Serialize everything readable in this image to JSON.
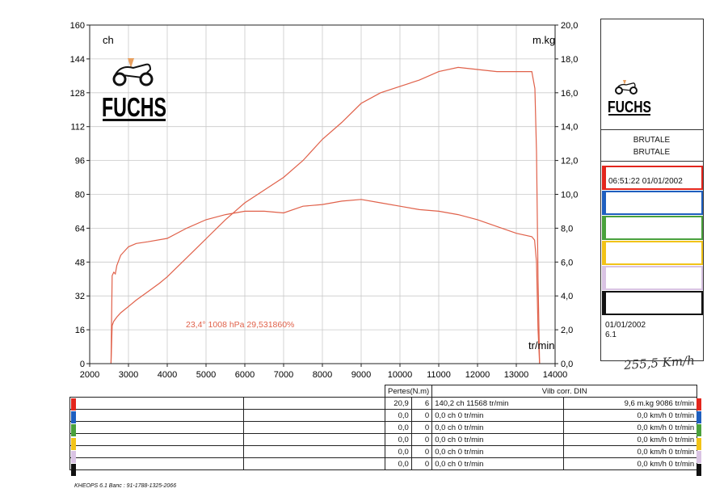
{
  "chart_data": {
    "type": "line",
    "title": "",
    "xlabel": "tr/min",
    "ylabel_left": "ch",
    "ylabel_right": "m.kg",
    "xlim": [
      2000,
      14000
    ],
    "ylim_left": [
      0,
      160
    ],
    "ylim_right": [
      0,
      20
    ],
    "x_ticks": [
      2000,
      3000,
      4000,
      5000,
      6000,
      7000,
      8000,
      9000,
      10000,
      11000,
      12000,
      13000,
      14000
    ],
    "y_left_ticks": [
      0,
      16,
      32,
      48,
      64,
      80,
      96,
      112,
      128,
      144,
      160
    ],
    "y_right_ticks": [
      "0,0",
      "2,0",
      "4,0",
      "6,0",
      "8,0",
      "10,0",
      "12,0",
      "14,0",
      "16,0",
      "18,0",
      "20,0"
    ],
    "grid": true,
    "annotation": "23,4°  1008 hPa  29,531860%",
    "series": [
      {
        "axis": "left",
        "x": [
          2550,
          2580,
          2620,
          2700,
          2800,
          3000,
          3200,
          3500,
          3800,
          4000,
          4500,
          5000,
          5500,
          6000,
          6500,
          7000,
          7500,
          8000,
          8500,
          9000,
          9500,
          10000,
          10500,
          11000,
          11500,
          12000,
          12500,
          13000,
          13400,
          13480,
          13520,
          13560,
          13600
        ],
        "y": [
          0,
          18,
          20,
          22,
          24,
          27,
          30,
          34,
          38,
          41,
          50,
          59,
          68,
          76,
          82,
          88,
          96,
          106,
          114,
          123,
          128,
          131,
          134,
          138,
          140,
          139,
          138,
          138,
          138,
          130,
          100,
          40,
          0
        ]
      },
      {
        "axis": "right",
        "x": [
          2550,
          2580,
          2620,
          2660,
          2700,
          2800,
          3000,
          3200,
          3500,
          4000,
          4500,
          5000,
          5500,
          6000,
          6500,
          7000,
          7500,
          8000,
          8500,
          9000,
          9500,
          10000,
          10500,
          11000,
          11500,
          12000,
          12500,
          13000,
          13400,
          13470,
          13520,
          13560,
          13600
        ],
        "y": [
          0.0,
          5.2,
          5.4,
          5.3,
          5.8,
          6.4,
          6.9,
          7.1,
          7.2,
          7.4,
          8.0,
          8.5,
          8.8,
          9.0,
          9.0,
          8.9,
          9.3,
          9.4,
          9.6,
          9.7,
          9.5,
          9.3,
          9.1,
          9.0,
          8.8,
          8.5,
          8.1,
          7.7,
          7.5,
          7.3,
          6.0,
          2.0,
          0.0
        ]
      }
    ]
  },
  "sidebar": {
    "logo_text": "FUCHS",
    "model_1": "BRUTALE",
    "model_2": "BRUTALE",
    "run1": "06:51:22  01/01/2002",
    "date": "01/01/2002",
    "version": "6.1",
    "run_colors": [
      "#e3261d",
      "#1f5fbf",
      "#4aa13c",
      "#f2c318",
      "#d9c3e3",
      "#111111"
    ]
  },
  "logo_text": "FUCHS",
  "handwritten": "255,5 Km/h",
  "table": {
    "header_pertes": "Pertes(N.m)",
    "header_vilb": "Vilb corr. DIN",
    "rows": [
      {
        "color": "#e3261d",
        "p1": "20,9",
        "p2": "6",
        "power": "140,2 ch 11568 tr/min",
        "torque": "9,6 m.kg 9086 tr/min"
      },
      {
        "color": "#1f5fbf",
        "p1": "0,0",
        "p2": "0",
        "power": "0,0 ch 0 tr/min",
        "torque": "0,0 km/h 0 tr/min"
      },
      {
        "color": "#4aa13c",
        "p1": "0,0",
        "p2": "0",
        "power": "0,0 ch 0 tr/min",
        "torque": "0,0 km/h 0 tr/min"
      },
      {
        "color": "#f2c318",
        "p1": "0,0",
        "p2": "0",
        "power": "0,0 ch 0 tr/min",
        "torque": "0,0 km/h 0 tr/min"
      },
      {
        "color": "#d9c3e3",
        "p1": "0,0",
        "p2": "0",
        "power": "0,0 ch 0 tr/min",
        "torque": "0,0 km/h 0 tr/min"
      },
      {
        "color": "#111111",
        "p1": "0,0",
        "p2": "0",
        "power": "0,0 ch 0 tr/min",
        "torque": "0,0 km/h 0 tr/min"
      }
    ]
  },
  "footer": "KHEOPS 6.1  Banc : 91-1788-1325-2066",
  "colors": {
    "curve": "#e0614a",
    "grid": "#c9c9c9"
  }
}
